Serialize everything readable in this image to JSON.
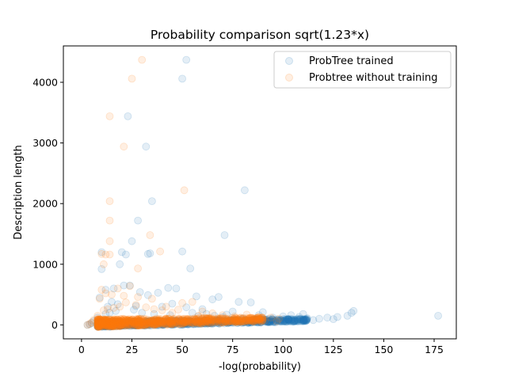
{
  "chart_data": {
    "type": "scatter",
    "title": "Probability comparison sqrt(1.23*x)",
    "xlabel": "-log(probability)",
    "ylabel": "Description length",
    "xlim": [
      -9,
      186
    ],
    "ylim": [
      -230,
      4600
    ],
    "xticks": [
      0,
      25,
      50,
      75,
      100,
      125,
      150,
      175
    ],
    "yticks": [
      0,
      1000,
      2000,
      3000,
      4000
    ],
    "legend_position": "upper-right",
    "marker_alpha": 0.12,
    "series": [
      {
        "name": "ProbTree trained",
        "color": "#1f77b4",
        "points": [
          [
            52,
            4370
          ],
          [
            50,
            4060
          ],
          [
            23,
            3440
          ],
          [
            32,
            2940
          ],
          [
            35,
            2040
          ],
          [
            81,
            2220
          ],
          [
            28,
            1720
          ],
          [
            25,
            1380
          ],
          [
            71,
            1480
          ],
          [
            10,
            1200
          ],
          [
            20,
            1200
          ],
          [
            22,
            1160
          ],
          [
            33,
            1170
          ],
          [
            34,
            1180
          ],
          [
            50,
            1210
          ],
          [
            19,
            1000
          ],
          [
            54,
            930
          ],
          [
            10,
            920
          ],
          [
            12,
            580
          ],
          [
            9,
            450
          ],
          [
            21,
            650
          ],
          [
            24,
            650
          ],
          [
            16,
            600
          ],
          [
            29,
            540
          ],
          [
            33,
            490
          ],
          [
            43,
            610
          ],
          [
            47,
            600
          ],
          [
            38,
            530
          ],
          [
            57,
            470
          ],
          [
            65,
            420
          ],
          [
            68,
            460
          ],
          [
            78,
            380
          ],
          [
            84,
            370
          ],
          [
            40,
            300
          ],
          [
            45,
            350
          ],
          [
            52,
            290
          ],
          [
            60,
            260
          ],
          [
            27,
            310
          ],
          [
            18,
            340
          ],
          [
            15,
            380
          ],
          [
            13,
            300
          ],
          [
            55,
            200
          ],
          [
            62,
            180
          ],
          [
            72,
            170
          ],
          [
            88,
            160
          ],
          [
            95,
            120
          ],
          [
            100,
            140
          ],
          [
            104,
            160
          ],
          [
            108,
            130
          ],
          [
            112,
            110
          ],
          [
            118,
            100
          ],
          [
            122,
            120
          ],
          [
            127,
            130
          ],
          [
            132,
            150
          ],
          [
            134,
            200
          ],
          [
            135,
            230
          ],
          [
            177,
            150
          ],
          [
            110,
            180
          ],
          [
            90,
            210
          ],
          [
            75,
            220
          ],
          [
            105,
            90
          ],
          [
            115,
            80
          ],
          [
            125,
            95
          ],
          [
            98,
            80
          ],
          [
            93,
            100
          ],
          [
            86,
            90
          ],
          [
            80,
            110
          ],
          [
            70,
            130
          ],
          [
            66,
            150
          ],
          [
            58,
            140
          ],
          [
            44,
            160
          ],
          [
            36,
            180
          ],
          [
            30,
            200
          ],
          [
            26,
            250
          ],
          [
            17,
            230
          ],
          [
            14,
            200
          ],
          [
            12,
            180
          ],
          [
            8,
            120
          ],
          [
            6,
            60
          ],
          [
            5,
            30
          ],
          [
            4,
            10
          ],
          [
            3,
            0
          ]
        ]
      },
      {
        "name": "Probtree without training",
        "color": "#ff7f0e",
        "points": [
          [
            30,
            4370
          ],
          [
            25,
            4060
          ],
          [
            14,
            3440
          ],
          [
            21,
            2940
          ],
          [
            14,
            2040
          ],
          [
            51,
            2220
          ],
          [
            14,
            1720
          ],
          [
            34,
            1480
          ],
          [
            14,
            1380
          ],
          [
            39,
            1210
          ],
          [
            10,
            1170
          ],
          [
            12,
            1160
          ],
          [
            14,
            1160
          ],
          [
            28,
            930
          ],
          [
            11,
            1000
          ],
          [
            24,
            640
          ],
          [
            18,
            600
          ],
          [
            12,
            520
          ],
          [
            10,
            580
          ],
          [
            9,
            430
          ],
          [
            15,
            500
          ],
          [
            21,
            480
          ],
          [
            28,
            460
          ],
          [
            35,
            430
          ],
          [
            42,
            300
          ],
          [
            48,
            250
          ],
          [
            50,
            360
          ],
          [
            55,
            380
          ],
          [
            22,
            370
          ],
          [
            27,
            330
          ],
          [
            32,
            290
          ],
          [
            60,
            220
          ],
          [
            65,
            190
          ],
          [
            70,
            160
          ],
          [
            76,
            140
          ],
          [
            82,
            170
          ],
          [
            88,
            130
          ],
          [
            94,
            120
          ],
          [
            98,
            100
          ],
          [
            40,
            240
          ],
          [
            45,
            200
          ],
          [
            36,
            260
          ],
          [
            19,
            300
          ],
          [
            16,
            280
          ],
          [
            13,
            260
          ],
          [
            11,
            240
          ],
          [
            8,
            150
          ],
          [
            6,
            80
          ],
          [
            5,
            40
          ],
          [
            4,
            15
          ],
          [
            3,
            0
          ],
          [
            58,
            150
          ],
          [
            63,
            110
          ],
          [
            72,
            90
          ],
          [
            84,
            80
          ],
          [
            91,
            70
          ],
          [
            97,
            60
          ]
        ]
      }
    ],
    "dense_bands": [
      {
        "series": 0,
        "x_range": [
          8,
          112
        ],
        "y_center_start": 10,
        "y_center_end": 80,
        "spread": 75,
        "count": 900
      },
      {
        "series": 1,
        "x_range": [
          8,
          90
        ],
        "y_center_start": 30,
        "y_center_end": 90,
        "spread": 110,
        "count": 900
      }
    ]
  }
}
